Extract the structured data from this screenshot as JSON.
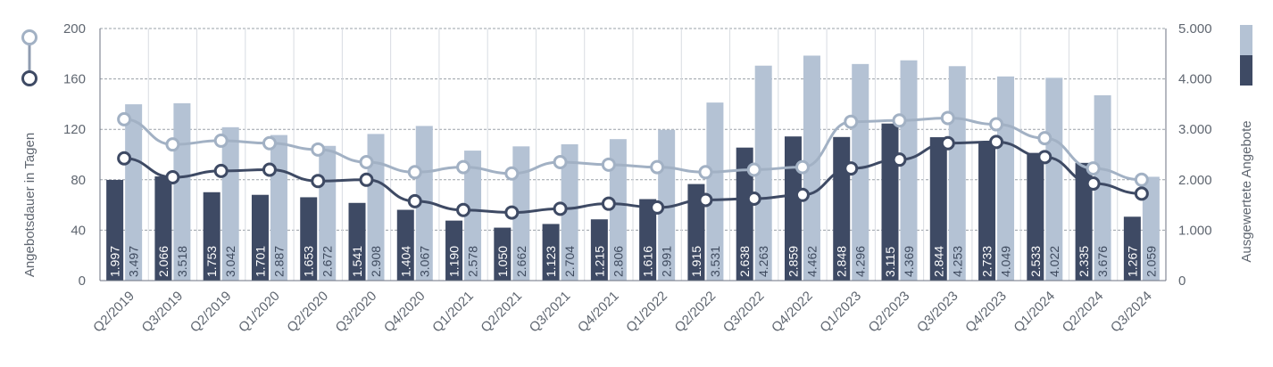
{
  "chart_data": {
    "type": "bar",
    "categories": [
      "Q2/2019",
      "Q3/2019",
      "Q2/2019",
      "Q1/2020",
      "Q2/2020",
      "Q3/2020",
      "Q4/2020",
      "Q1/2021",
      "Q2/2021",
      "Q3/2021",
      "Q4/2021",
      "Q1/2022",
      "Q2/2022",
      "Q3/2022",
      "Q4/2022",
      "Q1/2023",
      "Q2/2023",
      "Q3/2023",
      "Q4/2023",
      "Q1/2024",
      "Q2/2024",
      "Q3/2024"
    ],
    "bar_series": [
      {
        "values": [
          1997,
          2066,
          1753,
          1701,
          1653,
          1541,
          1404,
          1190,
          1050,
          1123,
          1215,
          1616,
          1915,
          2638,
          2859,
          2848,
          3115,
          2844,
          2733,
          2533,
          2335,
          1267
        ],
        "labels": [
          "1.997",
          "2.066",
          "1.753",
          "1.701",
          "1.653",
          "1.541",
          "1.404",
          "1.190",
          "1.050",
          "1.123",
          "1.215",
          "1.616",
          "1.915",
          "2.638",
          "2.859",
          "2.848",
          "3.115",
          "2.844",
          "2.733",
          "2.533",
          "2.335",
          "1.267"
        ],
        "color": "#3e4a64"
      },
      {
        "values": [
          3497,
          3518,
          3042,
          2887,
          2672,
          2908,
          3067,
          2578,
          2662,
          2704,
          2806,
          2991,
          3531,
          4263,
          4462,
          4296,
          4369,
          4253,
          4049,
          4022,
          3676,
          2059
        ],
        "labels": [
          "3.497",
          "3.518",
          "3.042",
          "2.887",
          "2.672",
          "2.908",
          "3.067",
          "2.578",
          "2.662",
          "2.704",
          "2.806",
          "2.991",
          "3.531",
          "4.263",
          "4.462",
          "4.296",
          "4.369",
          "4.253",
          "4.049",
          "4.022",
          "3.676",
          "2.059"
        ],
        "color": "#b4c2d4"
      }
    ],
    "line_series": [
      {
        "values": [
          97,
          82,
          87,
          88,
          79,
          80,
          63,
          56,
          54,
          57,
          61,
          58,
          64,
          65,
          68,
          89,
          96,
          109,
          110,
          98,
          77,
          69
        ],
        "color": "#3e4a64"
      },
      {
        "values": [
          128,
          108,
          111,
          109,
          104,
          94,
          86,
          90,
          85,
          94,
          92,
          90,
          86,
          88,
          90,
          126,
          127,
          129,
          124,
          113,
          89,
          80
        ],
        "color": "#a2b1c4"
      }
    ],
    "ylabel": "Angebotsdauer in Tagen",
    "y2label": "Ausgewertete Angebote",
    "ylim": [
      0,
      200
    ],
    "y2lim": [
      0,
      5000
    ],
    "yticks": [
      "0",
      "40",
      "80",
      "120",
      "160",
      "200"
    ],
    "y2ticks": [
      "0",
      "1.000",
      "2.000",
      "3.000",
      "4.000",
      "5.000"
    ],
    "grid": true
  }
}
